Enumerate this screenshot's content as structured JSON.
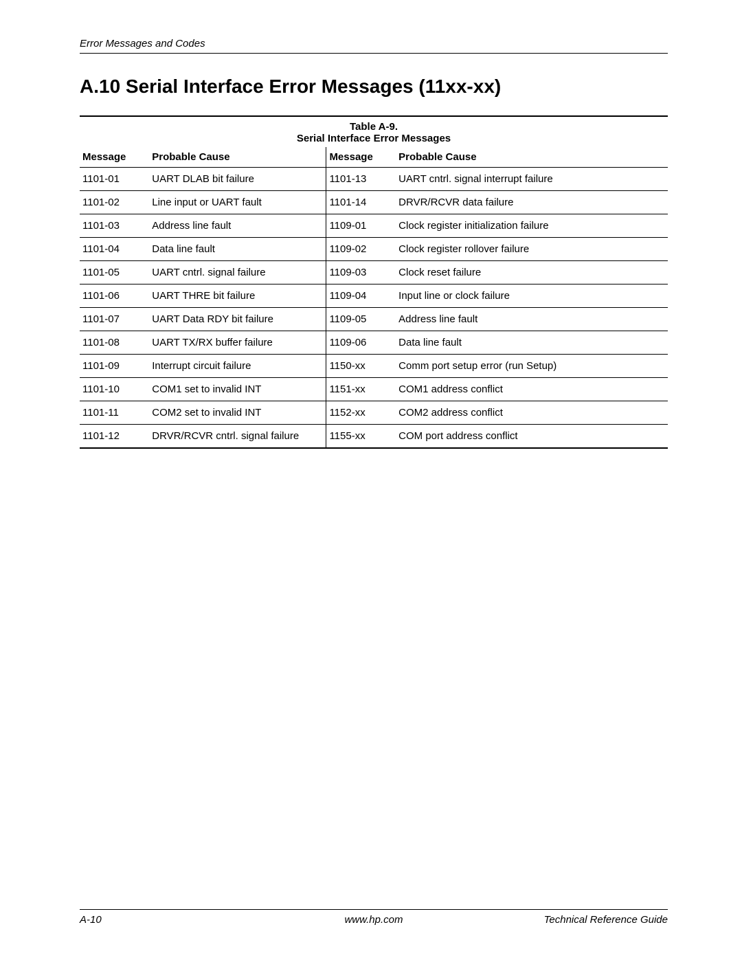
{
  "header": {
    "running_title": "Error Messages and Codes"
  },
  "section": {
    "title": "A.10 Serial Interface Error Messages (11xx-xx)"
  },
  "table": {
    "caption": "Table A-9.",
    "subcaption": "Serial Interface Error Messages",
    "columns": {
      "msg": "Message",
      "cause": "Probable Cause"
    },
    "rows": [
      {
        "m1": "1101-01",
        "c1": "UART DLAB bit failure",
        "m2": "1101-13",
        "c2": "UART cntrl. signal interrupt failure"
      },
      {
        "m1": "1101-02",
        "c1": "Line input or UART fault",
        "m2": "1101-14",
        "c2": "DRVR/RCVR data failure"
      },
      {
        "m1": "1101-03",
        "c1": "Address line fault",
        "m2": "1109-01",
        "c2": "Clock register initialization failure"
      },
      {
        "m1": "1101-04",
        "c1": "Data line fault",
        "m2": "1109-02",
        "c2": "Clock register rollover failure"
      },
      {
        "m1": "1101-05",
        "c1": "UART cntrl. signal failure",
        "m2": "1109-03",
        "c2": "Clock reset failure"
      },
      {
        "m1": "1101-06",
        "c1": "UART THRE bit failure",
        "m2": "1109-04",
        "c2": "Input line or clock failure"
      },
      {
        "m1": "1101-07",
        "c1": "UART Data RDY bit failure",
        "m2": "1109-05",
        "c2": "Address line fault"
      },
      {
        "m1": "1101-08",
        "c1": "UART TX/RX buffer failure",
        "m2": "1109-06",
        "c2": "Data line fault"
      },
      {
        "m1": "1101-09",
        "c1": "Interrupt circuit failure",
        "m2": "1150-xx",
        "c2": "Comm port setup error (run Setup)"
      },
      {
        "m1": "1101-10",
        "c1": "COM1 set to invalid INT",
        "m2": "1151-xx",
        "c2": "COM1 address conflict"
      },
      {
        "m1": "1101-11",
        "c1": "COM2 set to invalid INT",
        "m2": "1152-xx",
        "c2": "COM2 address conflict"
      },
      {
        "m1": "1101-12",
        "c1": "DRVR/RCVR cntrl. signal failure",
        "m2": "1155-xx",
        "c2": "COM port address conflict"
      }
    ]
  },
  "footer": {
    "page_number": "A-10",
    "url": "www.hp.com",
    "doc_title": "Technical Reference Guide"
  }
}
